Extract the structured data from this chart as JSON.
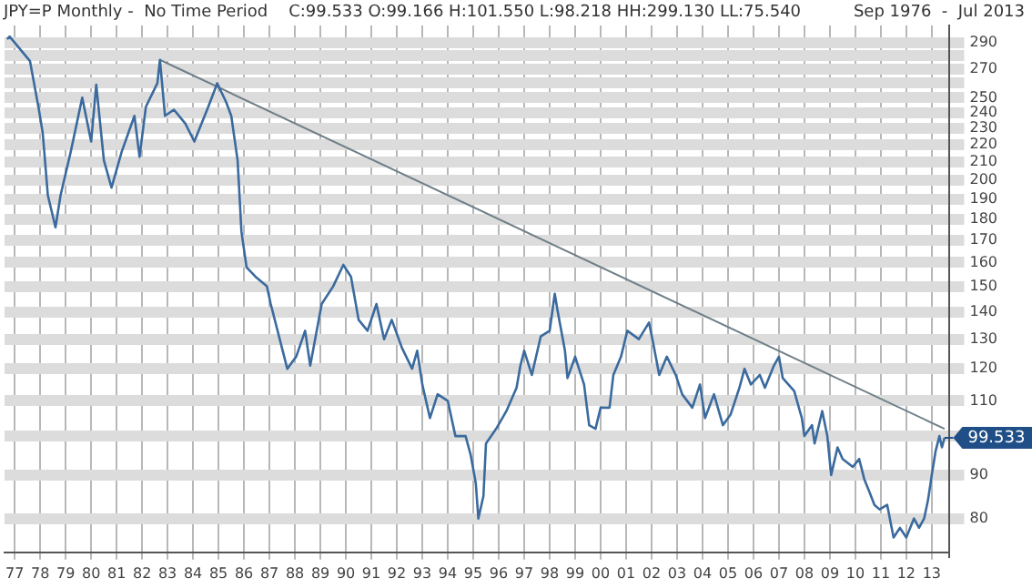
{
  "chart_data": {
    "type": "line",
    "title": "JPY=P Monthly -  No Time Period    C:99.533 O:99.166 H:101.550 L:98.218 HH:299.130 LL:75.540",
    "subtitle": "Sep 1976  -  Jul 2013",
    "log": "y",
    "grid": true,
    "marker": "none",
    "line_style": "solid",
    "xlim": [
      1976.6,
      2013.7
    ],
    "xticks": [
      {
        "value": 1977,
        "label": "77"
      },
      {
        "value": 1978,
        "label": "78"
      },
      {
        "value": 1979,
        "label": "79"
      },
      {
        "value": 1980,
        "label": "80"
      },
      {
        "value": 1981,
        "label": "81"
      },
      {
        "value": 1982,
        "label": "82"
      },
      {
        "value": 1983,
        "label": "83"
      },
      {
        "value": 1984,
        "label": "84"
      },
      {
        "value": 1985,
        "label": "85"
      },
      {
        "value": 1986,
        "label": "86"
      },
      {
        "value": 1987,
        "label": "87"
      },
      {
        "value": 1988,
        "label": "88"
      },
      {
        "value": 1989,
        "label": "89"
      },
      {
        "value": 1990,
        "label": "90"
      },
      {
        "value": 1991,
        "label": "91"
      },
      {
        "value": 1992,
        "label": "92"
      },
      {
        "value": 1993,
        "label": "93"
      },
      {
        "value": 1994,
        "label": "94"
      },
      {
        "value": 1995,
        "label": "95"
      },
      {
        "value": 1996,
        "label": "96"
      },
      {
        "value": 1997,
        "label": "97"
      },
      {
        "value": 1998,
        "label": "98"
      },
      {
        "value": 1999,
        "label": "99"
      },
      {
        "value": 2000,
        "label": "00"
      },
      {
        "value": 2001,
        "label": "01"
      },
      {
        "value": 2002,
        "label": "02"
      },
      {
        "value": 2003,
        "label": "03"
      },
      {
        "value": 2004,
        "label": "04"
      },
      {
        "value": 2005,
        "label": "05"
      },
      {
        "value": 2006,
        "label": "06"
      },
      {
        "value": 2007,
        "label": "07"
      },
      {
        "value": 2008,
        "label": "08"
      },
      {
        "value": 2009,
        "label": "09"
      },
      {
        "value": 2010,
        "label": "10"
      },
      {
        "value": 2011,
        "label": "11"
      },
      {
        "value": 2012,
        "label": "12"
      },
      {
        "value": 2013,
        "label": "13"
      }
    ],
    "ylim": [
      73,
      304
    ],
    "yticks": [
      80,
      90,
      {
        "value": 100,
        "label": null
      },
      110,
      120,
      130,
      140,
      150,
      160,
      170,
      180,
      190,
      200,
      210,
      220,
      230,
      240,
      250,
      {
        "value": 260,
        "label": null
      },
      270,
      {
        "value": 280,
        "label": null
      },
      290
    ],
    "series": [
      {
        "color": "#3a6a9e",
        "x": [
          1976.7,
          1976.8,
          1977.6,
          1977.95,
          1978.1,
          1978.3,
          1978.6,
          1978.8,
          1979.2,
          1979.65,
          1980,
          1980.2,
          1980.5,
          1980.8,
          1981.2,
          1981.7,
          1981.9,
          1982.15,
          1982.6,
          1982.7,
          1982.9,
          1983.25,
          1983.7,
          1984.05,
          1984.6,
          1984.95,
          1985.3,
          1985.5,
          1985.75,
          1985.9,
          1986.1,
          1986.45,
          1986.9,
          1987.05,
          1987.7,
          1988.05,
          1988.4,
          1988.6,
          1989.05,
          1989.5,
          1989.9,
          1990.2,
          1990.5,
          1990.85,
          1991.2,
          1991.5,
          1991.8,
          1992.2,
          1992.6,
          1992.8,
          1993.0,
          1993.3,
          1993.6,
          1994.0,
          1994.3,
          1994.7,
          1994.9,
          1995.1,
          1995.2,
          1995.4,
          1995.5,
          1995.9,
          1996.3,
          1996.7,
          1996.85,
          1997.0,
          1997.3,
          1997.65,
          1998.0,
          1998.2,
          1998.3,
          1998.6,
          1998.7,
          1999.0,
          1999.35,
          1999.55,
          1999.8,
          2000.0,
          2000.35,
          2000.5,
          2000.8,
          2001.05,
          2001.5,
          2001.9,
          2002.1,
          2002.3,
          2002.6,
          2002.95,
          2003.2,
          2003.6,
          2003.9,
          2004.1,
          2004.45,
          2004.8,
          2005.1,
          2005.45,
          2005.65,
          2005.9,
          2006.25,
          2006.45,
          2006.8,
          2007.0,
          2007.15,
          2007.6,
          2007.9,
          2008.0,
          2008.3,
          2008.4,
          2008.7,
          2008.9,
          2009.05,
          2009.3,
          2009.5,
          2009.9,
          2010.15,
          2010.35,
          2010.55,
          2010.75,
          2010.95,
          2011.25,
          2011.5,
          2011.75,
          2012.0,
          2012.3,
          2012.5,
          2012.7,
          2012.85,
          2013.0,
          2013.15,
          2013.3,
          2013.4,
          2013.5
        ],
        "values": [
          293,
          295,
          276,
          242,
          227,
          192,
          176,
          192,
          216,
          250,
          222,
          259,
          211,
          196,
          216,
          238,
          213,
          244,
          260,
          277,
          238,
          242,
          233,
          222,
          244,
          260,
          247,
          238,
          211,
          174,
          158,
          154,
          150,
          143,
          120,
          124,
          133,
          121,
          143,
          150,
          159,
          154,
          137,
          133,
          143,
          130,
          137,
          127,
          120,
          126,
          115,
          105,
          112,
          110,
          100,
          100,
          95,
          88,
          80,
          85,
          98,
          102,
          107,
          114,
          121,
          126,
          118,
          131,
          133,
          147,
          141,
          126,
          117,
          124,
          115,
          103,
          102,
          108,
          108,
          118,
          124,
          133,
          130,
          136,
          127,
          118,
          124,
          118,
          112,
          108,
          115,
          105,
          112,
          103,
          106,
          114,
          120,
          115,
          118,
          114,
          121,
          124,
          117,
          113,
          105,
          100,
          103,
          98,
          107,
          100,
          90,
          97,
          94,
          92,
          94,
          89,
          86,
          83,
          82,
          83,
          76,
          78,
          76,
          80,
          78,
          80,
          84,
          90,
          96,
          100,
          97,
          99.533
        ]
      },
      {
        "type": "line",
        "color": "#6f7f86",
        "x": [
          1982.7,
          2013.5
        ],
        "values": [
          277,
          102
        ]
      }
    ],
    "annotations": [
      {
        "text": "99.533",
        "x": 2013.5,
        "y": 99.533
      }
    ]
  }
}
